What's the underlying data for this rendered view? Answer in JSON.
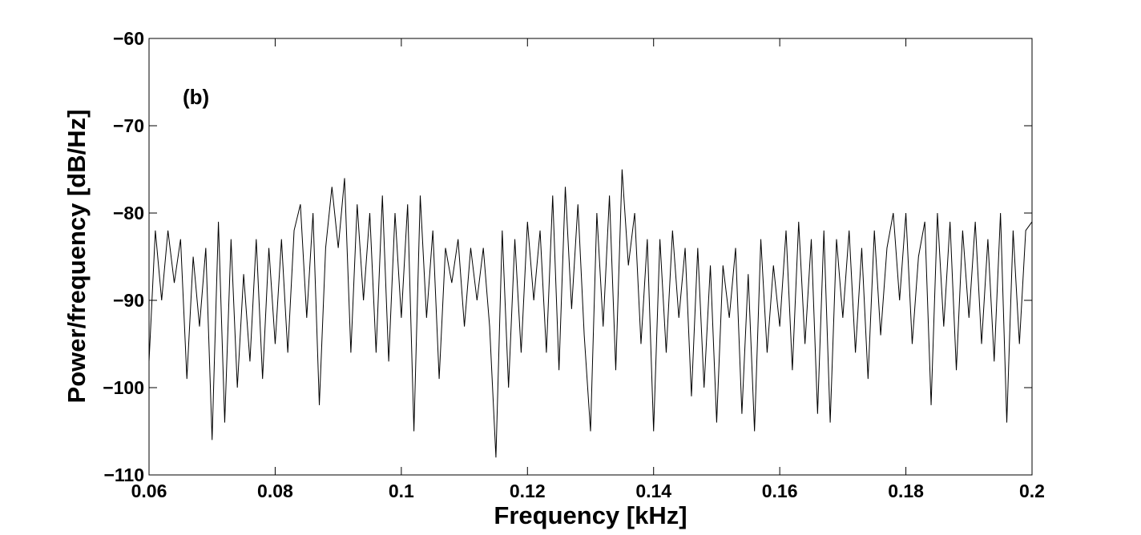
{
  "chart_data": {
    "type": "line",
    "xlabel": "Frequency [kHz]",
    "ylabel": "Power/frequency [dB/Hz]",
    "annotation": "(b)",
    "xlim": [
      0.06,
      0.2
    ],
    "ylim": [
      -110,
      -60
    ],
    "xticks": [
      0.06,
      0.08,
      0.1,
      0.12,
      0.14,
      0.16,
      0.18,
      0.2
    ],
    "yticks": [
      {
        "value": -110,
        "label": "−110"
      },
      {
        "value": -100,
        "label": "−100"
      },
      {
        "value": -90,
        "label": "−90"
      },
      {
        "value": -80,
        "label": "−80"
      },
      {
        "value": -70,
        "label": "−70"
      },
      {
        "value": -60,
        "label": "−60"
      }
    ],
    "color": "#000000",
    "x": [
      0.06,
      0.061,
      0.062,
      0.063,
      0.064,
      0.065,
      0.066,
      0.067,
      0.068,
      0.069,
      0.07,
      0.071,
      0.072,
      0.073,
      0.074,
      0.075,
      0.076,
      0.077,
      0.078,
      0.079,
      0.08,
      0.081,
      0.082,
      0.083,
      0.084,
      0.085,
      0.086,
      0.087,
      0.088,
      0.089,
      0.09,
      0.091,
      0.092,
      0.093,
      0.094,
      0.095,
      0.096,
      0.097,
      0.098,
      0.099,
      0.1,
      0.101,
      0.102,
      0.103,
      0.104,
      0.105,
      0.106,
      0.107,
      0.108,
      0.109,
      0.11,
      0.111,
      0.112,
      0.113,
      0.114,
      0.115,
      0.116,
      0.117,
      0.118,
      0.119,
      0.12,
      0.121,
      0.122,
      0.123,
      0.124,
      0.125,
      0.126,
      0.127,
      0.128,
      0.129,
      0.13,
      0.131,
      0.132,
      0.133,
      0.134,
      0.135,
      0.136,
      0.137,
      0.138,
      0.139,
      0.14,
      0.141,
      0.142,
      0.143,
      0.144,
      0.145,
      0.146,
      0.147,
      0.148,
      0.149,
      0.15,
      0.151,
      0.152,
      0.153,
      0.154,
      0.155,
      0.156,
      0.157,
      0.158,
      0.159,
      0.16,
      0.161,
      0.162,
      0.163,
      0.164,
      0.165,
      0.166,
      0.167,
      0.168,
      0.169,
      0.17,
      0.171,
      0.172,
      0.173,
      0.174,
      0.175,
      0.176,
      0.177,
      0.178,
      0.179,
      0.18,
      0.181,
      0.182,
      0.183,
      0.184,
      0.185,
      0.186,
      0.187,
      0.188,
      0.189,
      0.19,
      0.191,
      0.192,
      0.193,
      0.194,
      0.195,
      0.196,
      0.197,
      0.198,
      0.199,
      0.2
    ],
    "values": [
      -97,
      -82,
      -90,
      -82,
      -88,
      -83,
      -99,
      -85,
      -93,
      -84,
      -106,
      -81,
      -104,
      -83,
      -100,
      -87,
      -97,
      -83,
      -99,
      -84,
      -95,
      -83,
      -96,
      -82,
      -79,
      -92,
      -80,
      -102,
      -84,
      -77,
      -84,
      -76,
      -96,
      -79,
      -90,
      -80,
      -96,
      -78,
      -97,
      -80,
      -92,
      -79,
      -105,
      -78,
      -92,
      -82,
      -99,
      -84,
      -88,
      -83,
      -93,
      -84,
      -90,
      -84,
      -93,
      -108,
      -82,
      -100,
      -83,
      -96,
      -81,
      -90,
      -82,
      -96,
      -78,
      -98,
      -77,
      -91,
      -79,
      -94,
      -105,
      -80,
      -93,
      -78,
      -98,
      -75,
      -86,
      -80,
      -95,
      -83,
      -105,
      -83,
      -96,
      -82,
      -92,
      -84,
      -101,
      -84,
      -100,
      -86,
      -104,
      -86,
      -92,
      -84,
      -103,
      -87,
      -105,
      -83,
      -96,
      -86,
      -93,
      -82,
      -98,
      -81,
      -95,
      -83,
      -103,
      -82,
      -104,
      -83,
      -92,
      -82,
      -96,
      -84,
      -99,
      -82,
      -94,
      -84,
      -80,
      -90,
      -80,
      -95,
      -85,
      -81,
      -102,
      -80,
      -93,
      -81,
      -98,
      -82,
      -92,
      -81,
      -95,
      -83,
      -97,
      -80,
      -104,
      -82,
      -95,
      -82,
      -81
    ]
  }
}
